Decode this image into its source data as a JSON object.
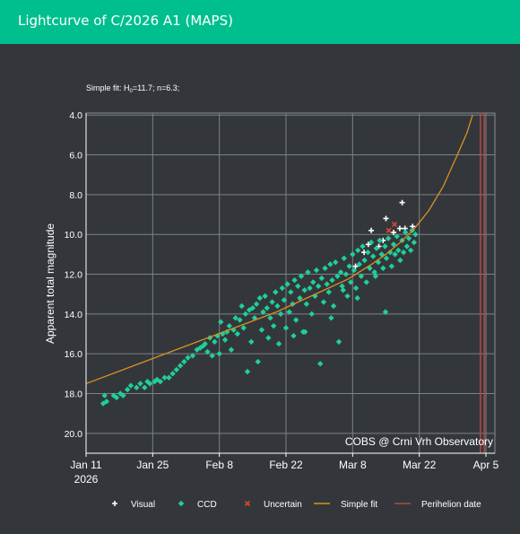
{
  "header": {
    "title": "Lightcurve of C/2026 A1 (MAPS)"
  },
  "chart_data": {
    "type": "scatter",
    "fit_note_prefix": "Simple fit: H",
    "fit_note_sub": "0",
    "fit_note_suffix": "=11.7; n=6.3;",
    "ylabel": "Apparent total magnitude",
    "y_reversed": true,
    "ylim": [
      21.0,
      3.9
    ],
    "y_ticks": [
      "4.0",
      "6.0",
      "8.0",
      "10.0",
      "12.0",
      "14.0",
      "16.0",
      "18.0",
      "20.0"
    ],
    "x_ticks": [
      {
        "label": "Jan 11",
        "label2": "2026",
        "day": 0
      },
      {
        "label": "Jan 25",
        "day": 14
      },
      {
        "label": "Feb 8",
        "day": 28
      },
      {
        "label": "Feb 22",
        "day": 42
      },
      {
        "label": "Mar 8",
        "day": 56
      },
      {
        "label": "Mar 22",
        "day": 70
      },
      {
        "label": "Apr 5",
        "day": 84
      }
    ],
    "xlim_days": [
      0,
      84
    ],
    "grid": true,
    "watermark": "COBS @ Crni Vrh Observatory",
    "perihelion_days": [
      83.6,
      84.4
    ],
    "colors": {
      "visual": "#ffffff",
      "ccd": "#1fcf9a",
      "uncertain": "#e0452e",
      "fit": "#d9921e",
      "perihelion": "#b04a44"
    },
    "simple_fit": {
      "H0": 11.7,
      "n": 6.3,
      "days": [
        0,
        10,
        20,
        30,
        40,
        50,
        55,
        60,
        63,
        66,
        69,
        72,
        75,
        78,
        80,
        81.2
      ],
      "mag": [
        17.5,
        16.6,
        15.7,
        14.8,
        13.9,
        12.8,
        12.25,
        11.5,
        11.0,
        10.4,
        9.7,
        8.8,
        7.6,
        6.0,
        4.9,
        4.0
      ]
    },
    "series": [
      {
        "name": "Visual",
        "marker": "+",
        "color": "#ffffff",
        "points": [
          [
            56.6,
            11.6
          ],
          [
            59.3,
            10.5
          ],
          [
            59.9,
            9.8
          ],
          [
            62.4,
            10.3
          ],
          [
            63.0,
            9.2
          ],
          [
            64.6,
            9.9
          ],
          [
            65.9,
            9.7
          ],
          [
            66.4,
            8.4
          ],
          [
            67.0,
            9.7
          ],
          [
            68.6,
            9.6
          ],
          [
            58.4,
            10.9
          ],
          [
            61.5,
            10.6
          ]
        ]
      },
      {
        "name": "CCD",
        "marker": "diamond",
        "color": "#1fcf9a",
        "points": [
          [
            3.6,
            18.5
          ],
          [
            3.9,
            18.1
          ],
          [
            4.3,
            18.4
          ],
          [
            5.8,
            18.1
          ],
          [
            6.4,
            18.2
          ],
          [
            7.2,
            18.0
          ],
          [
            7.8,
            18.1
          ],
          [
            8.7,
            17.8
          ],
          [
            9.4,
            17.6
          ],
          [
            10.6,
            17.7
          ],
          [
            11.4,
            17.5
          ],
          [
            12.3,
            17.7
          ],
          [
            12.9,
            17.4
          ],
          [
            13.4,
            17.5
          ],
          [
            14.4,
            17.4
          ],
          [
            14.9,
            17.3
          ],
          [
            15.6,
            17.4
          ],
          [
            16.5,
            17.2
          ],
          [
            17.4,
            17.2
          ],
          [
            18.2,
            17.0
          ],
          [
            19.0,
            16.8
          ],
          [
            19.8,
            16.6
          ],
          [
            20.6,
            16.4
          ],
          [
            21.4,
            16.2
          ],
          [
            22.4,
            16.1
          ],
          [
            23.3,
            15.8
          ],
          [
            24.0,
            15.7
          ],
          [
            24.6,
            15.6
          ],
          [
            25.0,
            15.5
          ],
          [
            25.5,
            15.9
          ],
          [
            26.0,
            15.2
          ],
          [
            26.5,
            16.1
          ],
          [
            27.0,
            15.4
          ],
          [
            27.6,
            15.1
          ],
          [
            28.0,
            16.0
          ],
          [
            28.3,
            14.4
          ],
          [
            28.7,
            15.0
          ],
          [
            29.2,
            15.3
          ],
          [
            29.6,
            14.9
          ],
          [
            30.1,
            14.6
          ],
          [
            30.5,
            15.8
          ],
          [
            31.0,
            14.8
          ],
          [
            31.4,
            14.2
          ],
          [
            31.8,
            15.0
          ],
          [
            32.3,
            14.3
          ],
          [
            32.7,
            13.6
          ],
          [
            33.1,
            14.7
          ],
          [
            33.5,
            14.0
          ],
          [
            33.9,
            16.9
          ],
          [
            34.3,
            13.8
          ],
          [
            34.7,
            15.4
          ],
          [
            35.0,
            13.7
          ],
          [
            35.4,
            14.2
          ],
          [
            35.8,
            13.5
          ],
          [
            36.1,
            16.4
          ],
          [
            36.5,
            13.2
          ],
          [
            36.9,
            14.8
          ],
          [
            37.2,
            13.9
          ],
          [
            37.6,
            13.1
          ],
          [
            38.0,
            13.7
          ],
          [
            38.3,
            15.2
          ],
          [
            38.7,
            14.2
          ],
          [
            39.1,
            13.4
          ],
          [
            39.4,
            14.6
          ],
          [
            39.8,
            12.9
          ],
          [
            40.2,
            13.6
          ],
          [
            40.5,
            15.5
          ],
          [
            40.9,
            14.0
          ],
          [
            41.2,
            12.7
          ],
          [
            41.6,
            13.3
          ],
          [
            42.0,
            14.7
          ],
          [
            42.3,
            12.5
          ],
          [
            42.7,
            13.9
          ],
          [
            43.0,
            12.9
          ],
          [
            43.4,
            13.5
          ],
          [
            43.8,
            12.3
          ],
          [
            44.1,
            14.3
          ],
          [
            44.5,
            12.6
          ],
          [
            44.9,
            13.2
          ],
          [
            45.2,
            12.1
          ],
          [
            45.6,
            14.9
          ],
          [
            45.9,
            12.8
          ],
          [
            46.3,
            13.5
          ],
          [
            46.6,
            11.9
          ],
          [
            47.0,
            12.7
          ],
          [
            47.4,
            14.0
          ],
          [
            47.7,
            12.4
          ],
          [
            48.1,
            13.1
          ],
          [
            48.4,
            11.8
          ],
          [
            48.8,
            12.6
          ],
          [
            49.2,
            16.5
          ],
          [
            49.5,
            12.2
          ],
          [
            49.9,
            13.4
          ],
          [
            50.2,
            11.7
          ],
          [
            50.6,
            12.5
          ],
          [
            51.0,
            12.9
          ],
          [
            51.3,
            11.5
          ],
          [
            51.7,
            12.3
          ],
          [
            52.0,
            13.6
          ],
          [
            52.4,
            11.4
          ],
          [
            52.8,
            12.1
          ],
          [
            53.1,
            15.4
          ],
          [
            53.5,
            11.9
          ],
          [
            53.8,
            12.6
          ],
          [
            54.2,
            11.2
          ],
          [
            54.6,
            12.0
          ],
          [
            54.9,
            13.1
          ],
          [
            55.3,
            11.6
          ],
          [
            55.6,
            12.4
          ],
          [
            56.0,
            11.0
          ],
          [
            56.3,
            11.8
          ],
          [
            56.7,
            12.7
          ],
          [
            57.1,
            10.8
          ],
          [
            57.4,
            11.5
          ],
          [
            57.8,
            12.1
          ],
          [
            58.1,
            10.6
          ],
          [
            58.5,
            11.3
          ],
          [
            58.9,
            12.4
          ],
          [
            59.2,
            10.9
          ],
          [
            59.6,
            11.7
          ],
          [
            59.9,
            10.4
          ],
          [
            60.3,
            11.1
          ],
          [
            60.6,
            11.9
          ],
          [
            61.0,
            10.7
          ],
          [
            61.4,
            11.4
          ],
          [
            61.7,
            10.3
          ],
          [
            62.1,
            11.0
          ],
          [
            62.4,
            11.7
          ],
          [
            62.8,
            10.6
          ],
          [
            63.1,
            11.2
          ],
          [
            63.5,
            10.2
          ],
          [
            63.9,
            10.9
          ],
          [
            64.2,
            11.6
          ],
          [
            64.6,
            10.5
          ],
          [
            64.9,
            11.0
          ],
          [
            65.3,
            10.1
          ],
          [
            65.6,
            10.8
          ],
          [
            66.0,
            11.3
          ],
          [
            66.4,
            10.3
          ],
          [
            66.7,
            10.9
          ],
          [
            67.1,
            9.9
          ],
          [
            67.4,
            10.6
          ],
          [
            67.8,
            10.2
          ],
          [
            68.2,
            10.8
          ],
          [
            68.5,
            9.8
          ],
          [
            68.9,
            10.4
          ],
          [
            69.2,
            10.0
          ],
          [
            60.8,
            12.1
          ],
          [
            62.9,
            13.9
          ],
          [
            57.0,
            13.2
          ],
          [
            54.0,
            12.8
          ],
          [
            51.5,
            14.2
          ],
          [
            46.0,
            14.9
          ],
          [
            43.6,
            15.1
          ]
        ]
      },
      {
        "name": "Uncertain",
        "marker": "x",
        "color": "#e0452e",
        "points": [
          [
            64.8,
            9.5
          ],
          [
            63.6,
            9.8
          ]
        ]
      }
    ],
    "legend": {
      "placement": "bottom",
      "items": [
        {
          "label": "Visual",
          "kind": "visual"
        },
        {
          "label": "CCD",
          "kind": "ccd"
        },
        {
          "label": "Uncertain",
          "kind": "uncertain"
        },
        {
          "label": "Simple fit",
          "kind": "fit"
        },
        {
          "label": "Perihelion date",
          "kind": "perihelion"
        }
      ]
    }
  }
}
